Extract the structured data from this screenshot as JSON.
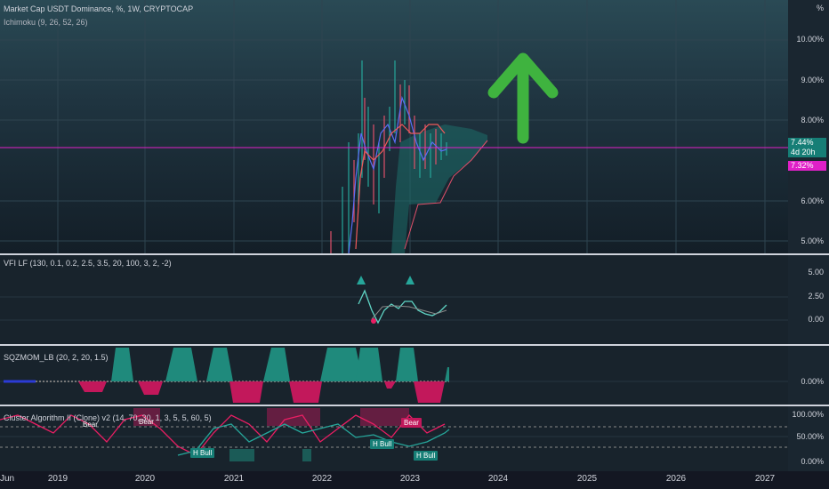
{
  "main_pane": {
    "title": "Market Cap USDT Dominance, %, 1W, CRYPTOCAP",
    "indicator": "Ichimoku (9, 26, 52, 26)",
    "unit": "%",
    "yticks": [
      "10.00%",
      "9.00%",
      "8.00%",
      "6.00%",
      "5.00%"
    ],
    "price_label": "7.44%",
    "countdown_label": "4d 20h",
    "line_label": "7.32%"
  },
  "vfi_pane": {
    "title": "VFI LF (130, 0.1, 0.2, 2.5, 3.5, 20, 100, 3, 2, -2)",
    "yticks": [
      "5.00",
      "2.50",
      "0.00"
    ]
  },
  "sqz_pane": {
    "title": "SQZMOM_LB (20, 2, 20, 1.5)",
    "yticks": [
      "0.00%"
    ]
  },
  "cluster_pane": {
    "title": "Cluster Algorithm II (Clone) v2 (14, 70, 30, 1, 3, 5, 5, 60, 5)",
    "yticks": [
      "100.00%",
      "50.00%",
      "0.00%"
    ],
    "tags": [
      "Bear",
      "Bear",
      "H Bull",
      "Bear",
      "H Bull",
      "H Bull"
    ]
  },
  "x_axis": {
    "labels": [
      "Jun",
      "2019",
      "2020",
      "2021",
      "2022",
      "2023",
      "2024",
      "2025",
      "2026",
      "2027"
    ]
  },
  "colors": {
    "background": "#131722",
    "arrow": "#3fb33f",
    "price_label": "#167e76",
    "line_label": "#e020c8",
    "teal": "#26a69a",
    "red": "#e91e63"
  }
}
